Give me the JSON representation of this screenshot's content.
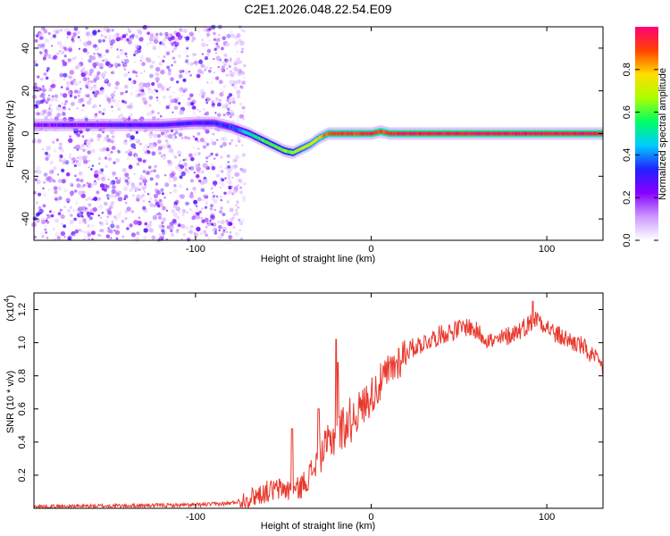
{
  "title": "C2E1.2026.048.22.54.E09",
  "chart_data": [
    {
      "type": "heatmap",
      "name": "spectrogram",
      "xlabel": "Height of straight line (km)",
      "ylabel": "Frequency (Hz)",
      "xlim": [
        -192,
        132
      ],
      "ylim": [
        -50,
        50
      ],
      "xticks": [
        -100,
        0,
        100
      ],
      "xtick_labels": [
        "-100",
        "0",
        "100"
      ],
      "yticks": [
        -40,
        -20,
        0,
        20,
        40
      ],
      "ytick_labels": [
        "-40",
        "-20",
        "0",
        "20",
        "40"
      ],
      "colorbar": {
        "label": "Normalized spectral amplitude",
        "range": [
          0,
          1
        ],
        "ticks": [
          0,
          0.2,
          0.4,
          0.6,
          0.8
        ],
        "tick_labels": [
          "0.0",
          "0.2",
          "0.4",
          "0.6",
          "0.8"
        ],
        "stops": [
          "#ffffff",
          "#cc99ff",
          "#8800ff",
          "#2222ff",
          "#00ccff",
          "#00ff66",
          "#aaff00",
          "#ffdd00",
          "#ff4400",
          "#ff0077"
        ]
      },
      "noise_region_x": [
        -192,
        -80
      ],
      "ridge": {
        "x": [
          -192,
          -160,
          -140,
          -120,
          -100,
          -90,
          -80,
          -70,
          -60,
          -50,
          -45,
          -40,
          -35,
          -30,
          -25,
          -20,
          -10,
          0,
          5,
          10,
          15,
          20,
          132
        ],
        "freq": [
          4,
          4,
          4,
          4,
          5,
          5,
          3,
          0,
          -4,
          -8,
          -9,
          -7,
          -5,
          -2,
          0,
          0,
          0,
          0,
          1,
          0,
          0,
          0,
          0
        ],
        "amplitude": [
          0.22,
          0.25,
          0.28,
          0.28,
          0.3,
          0.32,
          0.35,
          0.5,
          0.6,
          0.62,
          0.65,
          0.7,
          0.75,
          0.8,
          0.88,
          0.92,
          0.9,
          0.95,
          0.9,
          0.92,
          0.95,
          0.97,
          0.97
        ]
      }
    },
    {
      "type": "line",
      "name": "snr",
      "xlabel": "Height of straight line (km)",
      "ylabel": "SNR (10 * v/v)",
      "multiplier_label": "(x10",
      "multiplier_exponent": "4",
      "multiplier_close": ")",
      "xlim": [
        -192,
        132
      ],
      "ylim": [
        0,
        1.3
      ],
      "xticks": [
        -100,
        0,
        100
      ],
      "xtick_labels": [
        "-100",
        "0",
        "100"
      ],
      "yticks": [
        0.2,
        0.4,
        0.6,
        0.8,
        1.0,
        1.2
      ],
      "ytick_labels": [
        "0.2",
        "0.4",
        "0.6",
        "0.8",
        "1.0",
        "1.2"
      ],
      "color": "#e8382d",
      "trend_x": [
        -192,
        -100,
        -80,
        -70,
        -60,
        -50,
        -45,
        -40,
        -35,
        -30,
        -25,
        -20,
        -10,
        0,
        10,
        20,
        40,
        55,
        70,
        85,
        95,
        105,
        120,
        132
      ],
      "trend_y": [
        0.01,
        0.02,
        0.03,
        0.06,
        0.1,
        0.12,
        0.1,
        0.13,
        0.2,
        0.3,
        0.38,
        0.45,
        0.55,
        0.68,
        0.82,
        0.95,
        1.05,
        1.1,
        1.0,
        1.08,
        1.15,
        1.05,
        0.98,
        0.85
      ],
      "spikes": [
        [
          -45,
          0.48
        ],
        [
          -30,
          0.6
        ],
        [
          -20,
          1.02
        ],
        [
          -19,
          0.88
        ],
        [
          92,
          1.25
        ]
      ]
    }
  ]
}
